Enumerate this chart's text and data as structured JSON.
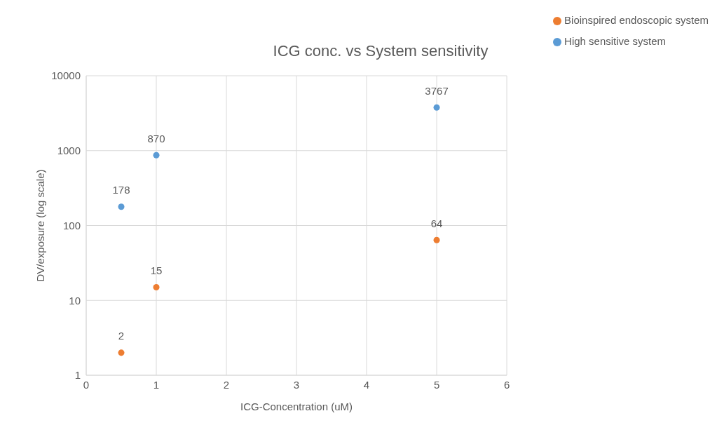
{
  "chart_data": {
    "type": "scatter",
    "title": "ICG conc. vs System sensitivity",
    "xlabel": "ICG-Concentration (uM)",
    "ylabel": "DV/exposure (log scale)",
    "x": [
      0.5,
      1,
      5
    ],
    "series": [
      {
        "name": "High sensitive system",
        "color": "#5b9bd5",
        "values": [
          178,
          870,
          3767
        ]
      },
      {
        "name": "Bioinspired endoscopic system",
        "color": "#ed7d31",
        "values": [
          2,
          15,
          64
        ]
      }
    ],
    "xlim": [
      0,
      6
    ],
    "xticks": [
      0,
      1,
      2,
      3,
      4,
      5,
      6
    ],
    "ylim": [
      1,
      10000
    ],
    "yticks": [
      1,
      10,
      100,
      1000,
      10000
    ],
    "log": "y",
    "grid": true,
    "legend": "top right",
    "marker": "circle",
    "data_labels": true
  }
}
